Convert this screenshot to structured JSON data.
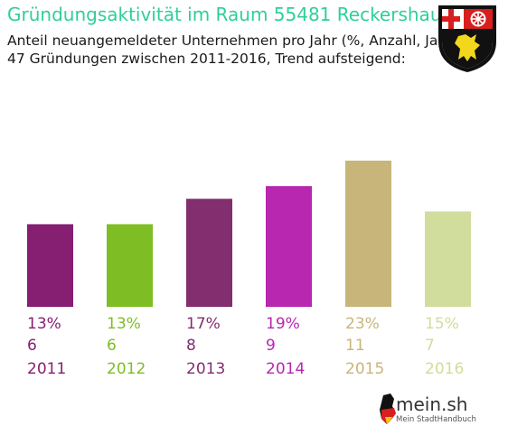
{
  "header": {
    "title": "Gründungsaktivität im Raum 55481 Reckershausen",
    "subtitle_line1": "Anteil neuangemeldeter Unternehmen pro Jahr (%, Anzahl, Jahr)",
    "subtitle_line2": "47 Gründungen zwischen 2011-2016, Trend aufsteigend:"
  },
  "crest": {
    "icon": "rhineland-palatinate-coat-of-arms"
  },
  "chart_data": {
    "type": "bar",
    "categories": [
      "2011",
      "2012",
      "2013",
      "2014",
      "2015",
      "2016"
    ],
    "percent_labels": [
      "13%",
      "13%",
      "17%",
      "19%",
      "23%",
      "15%"
    ],
    "values": [
      13,
      13,
      17,
      19,
      23,
      15
    ],
    "counts": [
      6,
      6,
      8,
      9,
      11,
      7
    ],
    "colors": [
      "#861f72",
      "#7fbd25",
      "#822e6f",
      "#b727b0",
      "#c8b57a",
      "#d0dd9c"
    ],
    "ylim": [
      0,
      23
    ],
    "grid": false,
    "legend": "none"
  },
  "footer": {
    "logo_text": "mein.sh",
    "logo_sub": "Mein StadtHandbuch",
    "icon": "germany-map-icon"
  }
}
